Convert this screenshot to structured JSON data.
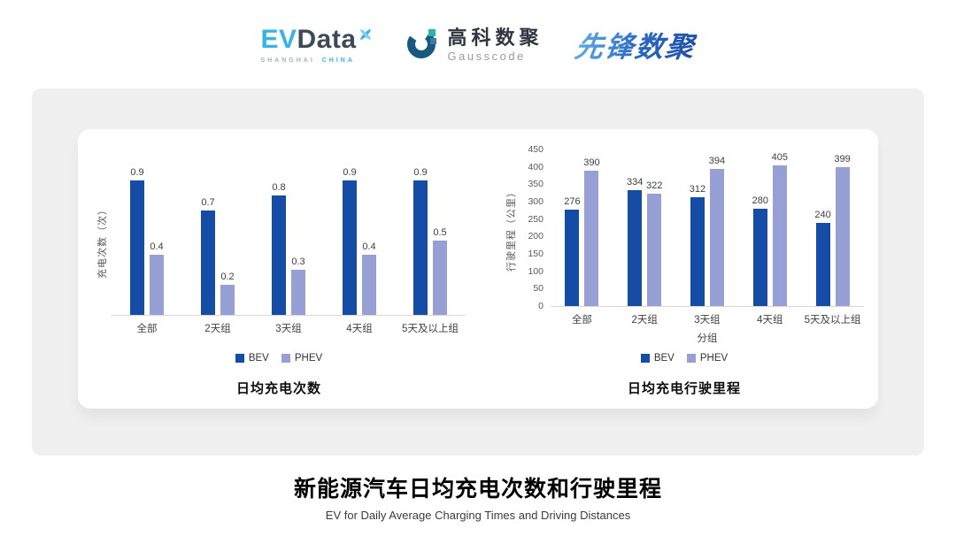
{
  "header": {
    "evdata_logo": {
      "ev": "EV",
      "data": "Data",
      "tagline_left": "SHANGHAI",
      "tagline_right": "CHINA"
    },
    "gausscode_logo": {
      "name_cn": "高科数聚",
      "name_en": "Gausscode"
    },
    "xianfeng_logo": {
      "name_cn": "先锋数聚"
    }
  },
  "chart_data": [
    {
      "type": "bar",
      "title": "日均充电次数",
      "ylabel": "充电次数（次）",
      "xlabel": "",
      "categories": [
        "全部",
        "2天组",
        "3天组",
        "4天组",
        "5天及以上组"
      ],
      "series": [
        {
          "name": "BEV",
          "color": "#154da6",
          "values": [
            0.9,
            0.7,
            0.8,
            0.9,
            0.9
          ]
        },
        {
          "name": "PHEV",
          "color": "#96a0d4",
          "values": [
            0.4,
            0.2,
            0.3,
            0.4,
            0.5
          ]
        }
      ],
      "ylim": [
        0,
        1.0
      ],
      "yticks": [],
      "grid": false,
      "legend_position": "bottom"
    },
    {
      "type": "bar",
      "title": "日均充电行驶里程",
      "ylabel": "行驶里程（公里）",
      "xlabel": "分组",
      "categories": [
        "全部",
        "2天组",
        "3天组",
        "4天组",
        "5天及以上组"
      ],
      "series": [
        {
          "name": "BEV",
          "color": "#154da6",
          "values": [
            276,
            334,
            312,
            280,
            240
          ]
        },
        {
          "name": "PHEV",
          "color": "#96a0d4",
          "values": [
            390,
            322,
            394,
            405,
            399
          ]
        }
      ],
      "ylim": [
        0,
        450
      ],
      "yticks": [
        0,
        50,
        100,
        150,
        200,
        250,
        300,
        350,
        400,
        450
      ],
      "grid": false,
      "legend_position": "bottom"
    }
  ],
  "footer": {
    "title": "新能源汽车日均充电次数和行驶里程",
    "subtitle": "EV for Daily Average Charging Times and Driving Distances"
  },
  "colors": {
    "bev": "#154da6",
    "phev": "#96a0d4",
    "panel_bg": "#f0f0f0",
    "evdata_blue": "#35b4e5",
    "evdata_dark": "#3d4a5a",
    "gausscode_blue": "#17597f",
    "gausscode_teal": "#2ab5ac",
    "xianfeng_blue": "#2f74c9"
  }
}
